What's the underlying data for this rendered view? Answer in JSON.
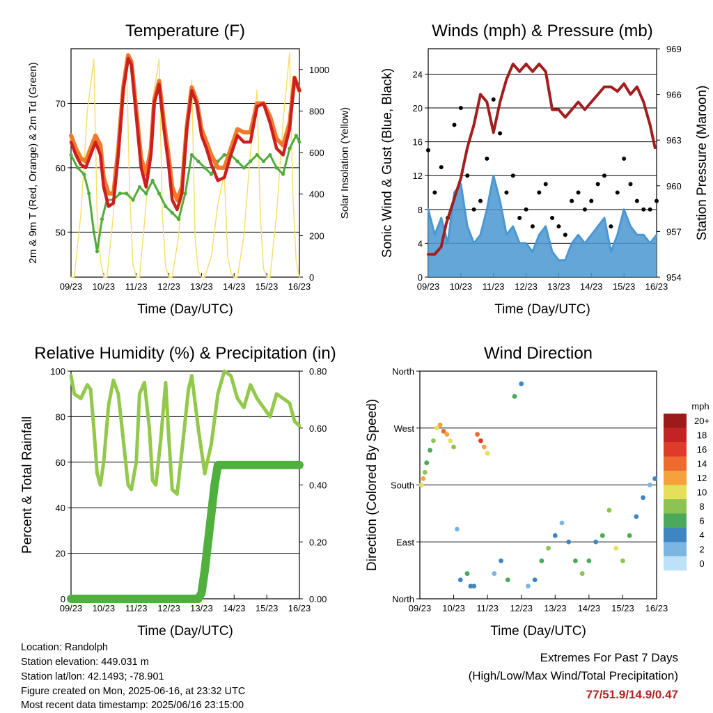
{
  "info": {
    "location": "Location: Randolph",
    "elevation": "Station elevation: 449.031 m",
    "latlon": "Station lat/lon: 42.1493; -78.901",
    "created": "Figure created on Mon, 2025-06-16, at 23:32 UTC",
    "latest": "Most recent data timestamp: 2025/06/16 23:15:00"
  },
  "extremes": {
    "title": "Extremes For Past 7 Days",
    "subtitle": "(High/Low/Max Wind/Total Precipitation)",
    "values": "77/51.9/14.9/0.47"
  },
  "colors": {
    "temp2m": "#cc1f1f",
    "temp9m": "#f07a2a",
    "dewpoint": "#4fac3a",
    "solar": "#f7df6e",
    "gust": "#000000",
    "wind": "#4a97d2",
    "pressure": "#a31d1d",
    "rh": "#93c94a",
    "precip": "#4fb03e"
  },
  "chart_data": [
    {
      "type": "line",
      "title": "Temperature (F)",
      "xlabel": "Time (Day/UTC)",
      "ylabel": "2m & 9m T (Red, Orange) & 2m Td (Green)",
      "y2label": "Solar Insolation (Yellow)",
      "xticks": [
        "09/23",
        "10/23",
        "11/23",
        "12/23",
        "13/23",
        "14/23",
        "15/23",
        "16/23"
      ],
      "xlim": [
        0,
        7
      ],
      "ylim": [
        43,
        78.5
      ],
      "yticks": [
        50,
        60,
        70
      ],
      "y2lim": [
        0,
        1100
      ],
      "y2ticks": [
        0,
        200,
        400,
        600,
        800,
        1000
      ],
      "series": [
        {
          "values_x": [
            0,
            0.15,
            0.3,
            0.45,
            0.6,
            0.75,
            0.9,
            1.0,
            1.15,
            1.3,
            1.45,
            1.6,
            1.75,
            1.85,
            2.0,
            2.15,
            2.3,
            2.45,
            2.55,
            2.7,
            2.85,
            3.0,
            3.1,
            3.25,
            3.4,
            3.55,
            3.7,
            3.85,
            4.0,
            4.15,
            4.3,
            4.5,
            4.7,
            4.9,
            5.1,
            5.3,
            5.5,
            5.7,
            5.9,
            6.1,
            6.3,
            6.5,
            6.7,
            6.85,
            7.0
          ],
          "y": [
            64,
            62,
            60.5,
            60,
            62,
            64,
            62,
            57,
            54,
            54.5,
            62,
            72,
            77,
            76,
            68,
            60,
            57,
            62,
            70,
            73,
            66,
            60,
            55,
            53.5,
            56,
            66,
            72,
            70,
            65,
            63,
            60.5,
            58,
            58.5,
            62,
            65,
            64,
            64,
            69.5,
            70,
            67,
            63,
            62,
            66,
            74,
            72
          ]
        },
        {
          "values_x": [
            0,
            0.15,
            0.3,
            0.45,
            0.6,
            0.75,
            0.9,
            1.0,
            1.15,
            1.3,
            1.45,
            1.6,
            1.75,
            1.85,
            2.0,
            2.15,
            2.3,
            2.45,
            2.55,
            2.7,
            2.85,
            3.0,
            3.1,
            3.25,
            3.4,
            3.55,
            3.7,
            3.85,
            4.0,
            4.15,
            4.3,
            4.5,
            4.7,
            4.9,
            5.1,
            5.3,
            5.5,
            5.7,
            5.9,
            6.1,
            6.3,
            6.5,
            6.7,
            6.85,
            7.0
          ],
          "y": [
            65,
            63,
            61.5,
            61,
            63,
            65,
            63.5,
            58.5,
            56,
            56,
            63,
            72.5,
            77.5,
            76.5,
            69,
            61.5,
            59,
            63,
            70.5,
            73.5,
            67,
            61.5,
            57,
            55,
            57,
            66.5,
            72.5,
            70.5,
            66,
            64,
            62,
            60,
            60,
            63,
            66,
            65.5,
            65.5,
            70,
            70,
            68,
            64.5,
            63.5,
            67,
            74,
            72
          ]
        },
        {
          "values_x": [
            0,
            0.2,
            0.4,
            0.55,
            0.7,
            0.8,
            0.95,
            1.1,
            1.3,
            1.5,
            1.7,
            1.9,
            2.1,
            2.3,
            2.5,
            2.7,
            2.9,
            3.1,
            3.3,
            3.5,
            3.7,
            3.9,
            4.1,
            4.3,
            4.5,
            4.7,
            4.9,
            5.1,
            5.3,
            5.5,
            5.7,
            5.9,
            6.1,
            6.3,
            6.5,
            6.7,
            6.9,
            7.0
          ],
          "y": [
            62,
            60,
            59,
            56,
            50,
            47,
            52,
            55,
            55,
            56,
            56,
            55,
            57,
            56,
            58,
            56,
            54,
            53,
            52,
            56,
            62,
            61,
            60,
            59,
            61,
            62,
            62,
            61,
            60,
            61,
            62,
            61,
            62,
            60,
            59,
            63,
            65,
            64
          ]
        },
        {
          "values_x": [
            0,
            0.1,
            0.3,
            0.5,
            0.7,
            0.8,
            0.9,
            1.0,
            1.1,
            1.3,
            1.5,
            1.7,
            1.8,
            1.9,
            2.0,
            2.1,
            2.3,
            2.5,
            2.7,
            2.8,
            2.9,
            3.0,
            3.1,
            3.3,
            3.5,
            3.7,
            3.8,
            3.9,
            4.0,
            4.1,
            4.3,
            4.5,
            4.7,
            4.8,
            4.9,
            5.0,
            5.1,
            5.3,
            5.5,
            5.7,
            5.8,
            5.9,
            6.0,
            6.1,
            6.3,
            6.5,
            6.7,
            6.8,
            6.9,
            7.0
          ],
          "y": [
            0,
            0,
            300,
            800,
            1050,
            300,
            80,
            0,
            0,
            300,
            800,
            1050,
            400,
            60,
            0,
            0,
            350,
            850,
            1050,
            300,
            50,
            0,
            0,
            200,
            600,
            950,
            200,
            30,
            0,
            0,
            100,
            350,
            500,
            100,
            20,
            0,
            0,
            200,
            600,
            900,
            300,
            40,
            0,
            0,
            300,
            750,
            1080,
            400,
            80,
            0
          ]
        }
      ]
    },
    {
      "type": "line",
      "title": "Winds (mph) & Pressure (mb)",
      "xlabel": "Time (Day/UTC)",
      "ylabel": "Sonic Wind & Gust (Blue, Black)",
      "y2label": "Station Pressure (Maroon)",
      "xticks": [
        "09/23",
        "10/23",
        "11/23",
        "12/23",
        "13/23",
        "14/23",
        "15/23",
        "16/23"
      ],
      "xlim": [
        0,
        7
      ],
      "ylim": [
        0,
        27
      ],
      "yticks": [
        0,
        4,
        8,
        12,
        16,
        20,
        24
      ],
      "y2lim": [
        954,
        969
      ],
      "y2ticks": [
        954,
        957,
        960,
        963,
        966,
        969
      ],
      "series": [
        {
          "values_x": [
            0,
            0.2,
            0.4,
            0.6,
            0.8,
            1.0,
            1.2,
            1.4,
            1.6,
            1.8,
            2.0,
            2.2,
            2.4,
            2.6,
            2.8,
            3.0,
            3.2,
            3.4,
            3.6,
            3.8,
            4.0,
            4.2,
            4.4,
            4.6,
            4.8,
            5.0,
            5.2,
            5.4,
            5.6,
            5.8,
            6.0,
            6.2,
            6.4,
            6.6,
            6.8,
            7.0
          ],
          "y": [
            15,
            10,
            13,
            7,
            18,
            20,
            12,
            8,
            9,
            14,
            21,
            17,
            10,
            12,
            7,
            8,
            6,
            10,
            11,
            7,
            6,
            5,
            9,
            10,
            8,
            9,
            11,
            12,
            6,
            10,
            14,
            11,
            9,
            8,
            8,
            9
          ]
        },
        {
          "values_x": [
            0,
            0.2,
            0.4,
            0.6,
            0.8,
            1.0,
            1.2,
            1.4,
            1.6,
            1.8,
            2.0,
            2.2,
            2.4,
            2.6,
            2.8,
            3.0,
            3.2,
            3.4,
            3.6,
            3.8,
            4.0,
            4.2,
            4.4,
            4.6,
            4.8,
            5.0,
            5.2,
            5.4,
            5.6,
            5.8,
            6.0,
            6.2,
            6.4,
            6.6,
            6.8,
            7.0
          ],
          "y": [
            8,
            5,
            7,
            4,
            10,
            11,
            6,
            4,
            5,
            8,
            12,
            9,
            5,
            6,
            4,
            4,
            3,
            5,
            6,
            3,
            2,
            2,
            4,
            5,
            4,
            5,
            6,
            7,
            3,
            5,
            8,
            6,
            5,
            5,
            4,
            5
          ]
        },
        {
          "values_x": [
            0,
            0.2,
            0.4,
            0.55,
            0.7,
            0.85,
            1.0,
            1.2,
            1.4,
            1.6,
            1.8,
            2.0,
            2.2,
            2.4,
            2.6,
            2.8,
            3.0,
            3.2,
            3.4,
            3.6,
            3.8,
            4.0,
            4.2,
            4.4,
            4.6,
            4.8,
            5.0,
            5.2,
            5.4,
            5.6,
            5.8,
            6.0,
            6.2,
            6.4,
            6.6,
            6.8,
            6.95
          ],
          "y": [
            955.5,
            955.5,
            956,
            957.5,
            958.5,
            959.5,
            960.5,
            962.5,
            964,
            966,
            965.5,
            963.5,
            965.5,
            967,
            968,
            967.5,
            968,
            967.5,
            968,
            967.5,
            965,
            965,
            964.5,
            965,
            965.5,
            965,
            965.5,
            966,
            966.5,
            966.5,
            966.2,
            966.7,
            966,
            966.5,
            965.5,
            964,
            962.5
          ]
        }
      ]
    },
    {
      "type": "line",
      "title": "Relative Humidity (%) & Precipitation (in)",
      "xlabel": "Time (Day/UTC)",
      "ylabel": "Percent & Total Rainfall",
      "xticks": [
        "09/23",
        "10/23",
        "11/23",
        "12/23",
        "13/23",
        "14/23",
        "15/23",
        "16/23"
      ],
      "xlim": [
        0,
        7
      ],
      "ylim": [
        0,
        100
      ],
      "yticks": [
        0,
        20,
        40,
        60,
        80,
        100
      ],
      "y2lim": [
        0,
        0.8
      ],
      "y2ticks": [
        "0.00",
        "0.20",
        "0.40",
        "0.60",
        "0.80"
      ],
      "series": [
        {
          "values_x": [
            0,
            0.1,
            0.3,
            0.5,
            0.6,
            0.7,
            0.8,
            0.9,
            1.0,
            1.15,
            1.3,
            1.45,
            1.6,
            1.75,
            1.85,
            2.0,
            2.1,
            2.25,
            2.4,
            2.5,
            2.6,
            2.75,
            2.9,
            3.0,
            3.1,
            3.25,
            3.4,
            3.6,
            3.7,
            3.9,
            4.1,
            4.3,
            4.5,
            4.7,
            4.9,
            5.1,
            5.3,
            5.5,
            5.7,
            5.9,
            6.1,
            6.3,
            6.5,
            6.7,
            6.85,
            7.0
          ],
          "y": [
            98,
            90,
            88,
            94,
            92,
            75,
            55,
            50,
            60,
            85,
            96,
            90,
            70,
            50,
            48,
            60,
            90,
            95,
            75,
            52,
            50,
            70,
            95,
            70,
            48,
            46,
            65,
            92,
            98,
            75,
            55,
            68,
            90,
            100,
            98,
            88,
            84,
            94,
            88,
            84,
            80,
            90,
            88,
            86,
            78,
            76
          ]
        },
        {
          "values_x": [
            0,
            0.5,
            1.0,
            1.5,
            2.0,
            2.5,
            3.0,
            3.5,
            3.9,
            4.0,
            4.1,
            4.2,
            4.3,
            4.4,
            4.5,
            4.7,
            5.0,
            5.5,
            6.0,
            6.5,
            7.0
          ],
          "y": [
            0,
            0,
            0,
            0,
            0,
            0,
            0,
            0,
            0,
            0.02,
            0.1,
            0.2,
            0.3,
            0.4,
            0.47,
            0.47,
            0.47,
            0.47,
            0.47,
            0.47,
            0.47
          ]
        }
      ]
    },
    {
      "type": "scatter",
      "title": "Wind Direction",
      "xlabel": "Time (Day/UTC)",
      "ylabel": "Direction (Colored By Speed)",
      "xticks": [
        "09/23",
        "10/23",
        "11/23",
        "12/23",
        "13/23",
        "14/23",
        "15/23",
        "16/23"
      ],
      "xlim": [
        0,
        7
      ],
      "yticks": [
        "North",
        "East",
        "South",
        "West",
        "North"
      ],
      "ylim": [
        0,
        360
      ],
      "legend_title": "mph",
      "legend_labels": [
        "20+",
        "18",
        "16",
        "14",
        "12",
        "10",
        "8",
        "6",
        "4",
        "2",
        "0"
      ],
      "legend_colors": [
        "#9b1b1b",
        "#c42323",
        "#de3b2a",
        "#ee6a2e",
        "#f6a23c",
        "#e5df5a",
        "#8cc452",
        "#4ca85a",
        "#3f86c0",
        "#7bb6e3",
        "#bde2f7"
      ],
      "points_x": [
        0.05,
        0.1,
        0.15,
        0.2,
        0.3,
        0.4,
        0.5,
        0.6,
        0.7,
        0.8,
        0.9,
        1.0,
        1.1,
        1.2,
        1.4,
        1.5,
        1.6,
        1.7,
        1.8,
        1.9,
        2.0,
        2.2,
        2.4,
        2.6,
        2.8,
        3.0,
        3.2,
        3.4,
        3.6,
        3.8,
        4.0,
        4.2,
        4.4,
        4.6,
        4.8,
        5.0,
        5.2,
        5.4,
        5.6,
        5.8,
        6.0,
        6.2,
        6.4,
        6.6,
        6.8,
        6.95
      ],
      "points_y": [
        180,
        190,
        200,
        215,
        235,
        250,
        270,
        275,
        265,
        260,
        250,
        240,
        110,
        30,
        40,
        20,
        20,
        260,
        250,
        240,
        230,
        40,
        60,
        30,
        320,
        340,
        20,
        30,
        60,
        80,
        100,
        120,
        90,
        60,
        40,
        60,
        90,
        100,
        140,
        80,
        60,
        100,
        130,
        160,
        180,
        190
      ],
      "points_speed": [
        10,
        12,
        8,
        6,
        6,
        8,
        10,
        12,
        14,
        12,
        10,
        8,
        2,
        4,
        6,
        4,
        4,
        14,
        16,
        12,
        10,
        2,
        4,
        6,
        6,
        4,
        2,
        4,
        6,
        8,
        4,
        2,
        4,
        6,
        8,
        6,
        4,
        6,
        8,
        10,
        8,
        6,
        4,
        4,
        2,
        4
      ]
    }
  ]
}
